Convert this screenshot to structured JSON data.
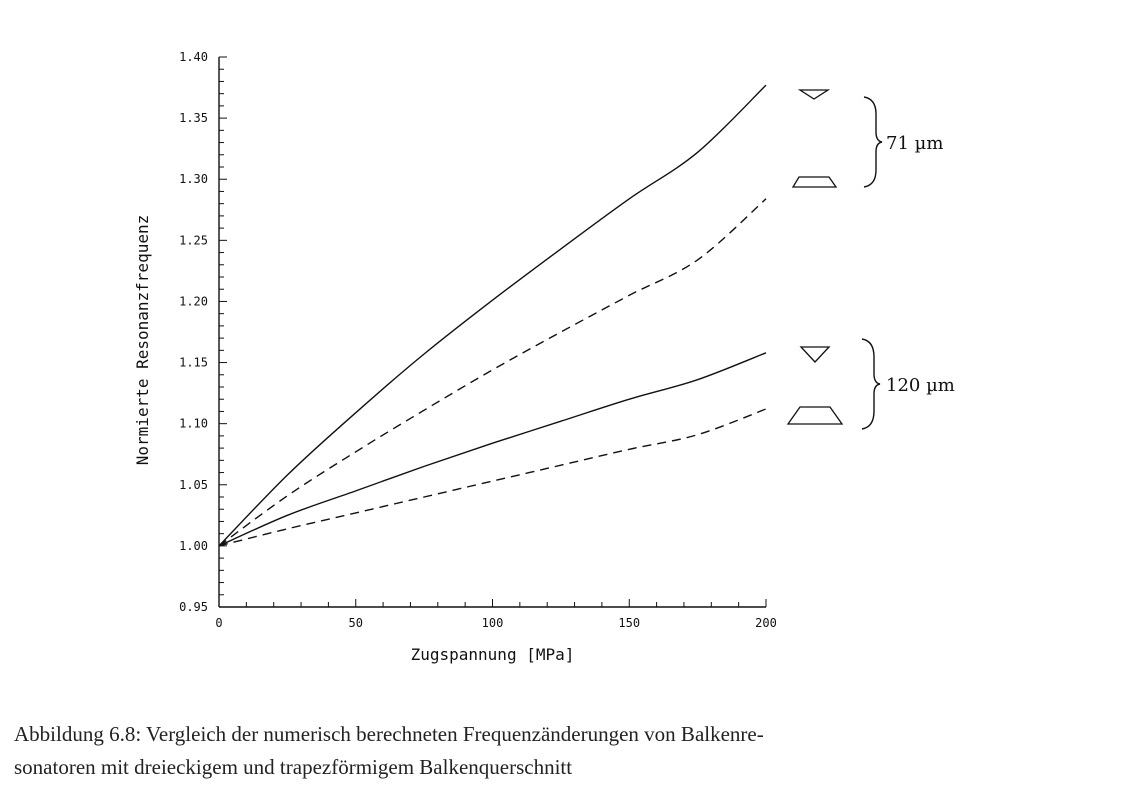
{
  "chart_data": {
    "type": "line",
    "xlabel": "Zugspannung [MPa]",
    "ylabel": "Normierte Resonanzfrequenz",
    "xlim": [
      0,
      200
    ],
    "ylim": [
      0.95,
      1.4
    ],
    "x_ticks": [
      "0",
      "50",
      "100",
      "150",
      "200"
    ],
    "y_ticks": [
      "0.95",
      "1.00",
      "1.05",
      "1.10",
      "1.15",
      "1.20",
      "1.25",
      "1.30",
      "1.35",
      "1.40"
    ],
    "series": [
      {
        "group": "71 µm",
        "cross_section": "triangle",
        "line_style": "solid",
        "x": [
          0,
          25,
          50,
          75,
          100,
          125,
          150,
          175,
          200
        ],
        "y": [
          1.0,
          1.058,
          1.109,
          1.157,
          1.201,
          1.243,
          1.284,
          1.322,
          1.377
        ]
      },
      {
        "group": "71 µm",
        "cross_section": "trapezoid",
        "line_style": "dashed",
        "x": [
          0,
          25,
          50,
          75,
          100,
          125,
          150,
          175,
          200
        ],
        "y": [
          1.0,
          1.041,
          1.077,
          1.111,
          1.144,
          1.175,
          1.205,
          1.234,
          1.284
        ]
      },
      {
        "group": "120 µm",
        "cross_section": "triangle",
        "line_style": "solid",
        "x": [
          0,
          25,
          50,
          75,
          100,
          125,
          150,
          175,
          200
        ],
        "y": [
          1.0,
          1.025,
          1.045,
          1.065,
          1.084,
          1.102,
          1.12,
          1.136,
          1.158
        ]
      },
      {
        "group": "120 µm",
        "cross_section": "trapezoid",
        "line_style": "dashed",
        "x": [
          0,
          25,
          50,
          75,
          100,
          125,
          150,
          175,
          200
        ],
        "y": [
          1.0,
          1.014,
          1.027,
          1.04,
          1.053,
          1.066,
          1.079,
          1.091,
          1.112
        ]
      }
    ],
    "group_labels": [
      "71 µm",
      "120 µm"
    ],
    "grid": false,
    "legend": "right, cross-section symbols with braces"
  },
  "caption": {
    "line1": "Abbildung 6.8: Vergleich der numerisch berechneten Frequenzänderungen von Balkenre-",
    "line2": "sonatoren mit dreieckigem und trapezförmigem Balkenquerschnitt"
  }
}
